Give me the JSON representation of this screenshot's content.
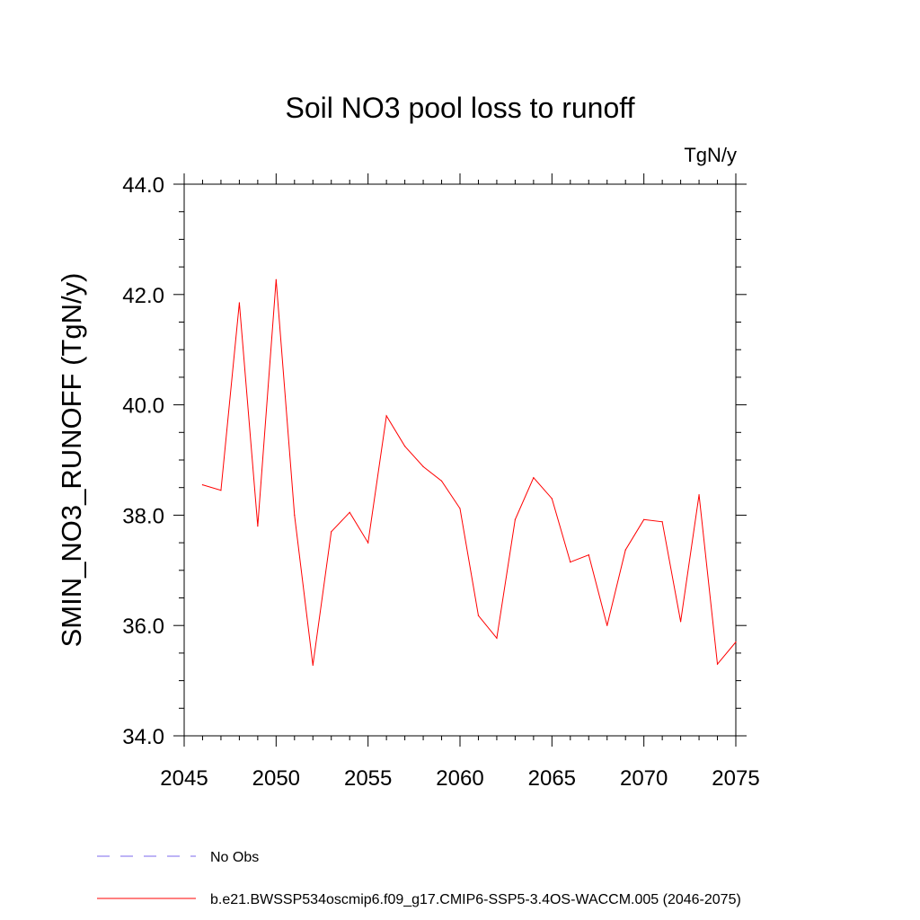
{
  "chart_data": {
    "type": "line",
    "title": "Soil NO3 pool loss to runoff",
    "units": "TgN/y",
    "xlabel": "",
    "ylabel": "SMIN_NO3_RUNOFF  (TgN/y)",
    "xlim": [
      2045,
      2075
    ],
    "ylim": [
      34.0,
      44.0
    ],
    "x_ticks": [
      2045,
      2050,
      2055,
      2060,
      2065,
      2070,
      2075
    ],
    "x_tick_labels": [
      "2045",
      "2050",
      "2055",
      "2060",
      "2065",
      "2070",
      "2075"
    ],
    "y_ticks": [
      34.0,
      36.0,
      38.0,
      40.0,
      42.0,
      44.0
    ],
    "y_tick_labels": [
      "34.0",
      "36.0",
      "38.0",
      "40.0",
      "42.0",
      "44.0"
    ],
    "grid": false,
    "legend_position": "bottom",
    "legend": [
      {
        "label": "No Obs",
        "color": "#7b68ee",
        "style": "dashed"
      },
      {
        "label": "b.e21.BWSSP534oscmip6.f09_g17.CMIP6-SSP5-3.4OS-WACCM.005 (2046-2075)",
        "color": "#ff0000",
        "style": "solid"
      }
    ],
    "series": [
      {
        "name": "b.e21.BWSSP534oscmip6.f09_g17.CMIP6-SSP5-3.4OS-WACCM.005 (2046-2075)",
        "color": "#ff0000",
        "x": [
          2046,
          2047,
          2048,
          2049,
          2050,
          2051,
          2052,
          2053,
          2054,
          2055,
          2056,
          2057,
          2058,
          2059,
          2060,
          2061,
          2062,
          2063,
          2064,
          2065,
          2066,
          2067,
          2068,
          2069,
          2070,
          2071,
          2072,
          2073,
          2074,
          2075
        ],
        "y": [
          38.55,
          38.45,
          41.85,
          37.8,
          42.27,
          38.0,
          35.28,
          37.7,
          38.05,
          37.5,
          39.8,
          39.25,
          38.88,
          38.62,
          38.12,
          36.18,
          35.77,
          37.92,
          38.68,
          38.3,
          37.15,
          37.28,
          36.0,
          37.37,
          37.92,
          37.88,
          36.07,
          38.37,
          35.3,
          35.7
        ]
      }
    ]
  }
}
